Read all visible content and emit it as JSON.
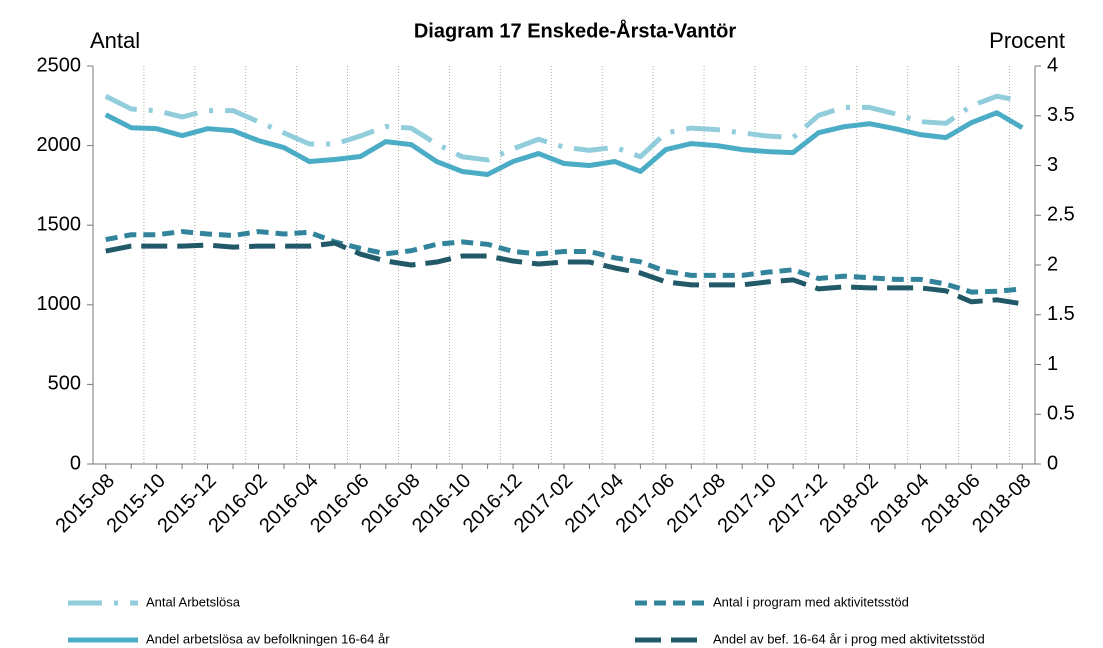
{
  "chart_data": {
    "type": "line",
    "title": "Diagram 17 Enskede-Årsta-Vantör",
    "y_label": "Antal",
    "y2_label": "Procent",
    "categories": [
      "2015-08",
      null,
      "2015-10",
      null,
      "2015-12",
      null,
      "2016-02",
      null,
      "2016-04",
      null,
      "2016-06",
      null,
      "2016-08",
      null,
      "2016-10",
      null,
      "2016-12",
      null,
      "2017-02",
      null,
      "2017-04",
      null,
      "2017-06",
      null,
      "2017-08",
      null,
      "2017-10",
      null,
      "2017-12",
      null,
      "2018-02",
      null,
      "2018-04",
      null,
      "2018-06",
      null,
      "2018-08"
    ],
    "ylim": [
      0,
      2500
    ],
    "yticks": [
      0,
      500,
      1000,
      1500,
      2000,
      2500
    ],
    "y2lim": [
      0,
      4
    ],
    "y2ticks": [
      0,
      0.5,
      1,
      1.5,
      2,
      2.5,
      3,
      3.5,
      4
    ],
    "series": [
      {
        "name": "Antal Arbetslösa",
        "color": "#92cddc",
        "values": [
          2310,
          2230,
          2220,
          2180,
          2220,
          2220,
          2150,
          2080,
          2010,
          2010,
          2060,
          2120,
          2110,
          2010,
          1930,
          1910,
          1980,
          2040,
          1990,
          1970,
          1990,
          1930,
          2080,
          2110,
          2100,
          2080,
          2060,
          2050,
          2190,
          2240,
          2240,
          2200,
          2150,
          2140,
          2250,
          2310,
          2280
        ]
      },
      {
        "name": "Antal i program med aktivitetsstöd",
        "color": "#31849b",
        "values": [
          1410,
          1440,
          1440,
          1460,
          1445,
          1435,
          1460,
          1445,
          1455,
          1395,
          1355,
          1320,
          1340,
          1380,
          1395,
          1380,
          1335,
          1320,
          1335,
          1335,
          1295,
          1270,
          1210,
          1185,
          1185,
          1185,
          1205,
          1220,
          1165,
          1180,
          1170,
          1160,
          1160,
          1130,
          1080,
          1085,
          1100
        ]
      },
      {
        "name": "Andel arbetslösa av befolkningen 16-64 år",
        "color": "#4bacc6",
        "axis": "y2",
        "values": [
          3.51,
          3.38,
          3.37,
          3.3,
          3.37,
          3.35,
          3.25,
          3.18,
          3.04,
          3.06,
          3.09,
          3.24,
          3.21,
          3.04,
          2.94,
          2.91,
          3.04,
          3.12,
          3.02,
          3.0,
          3.04,
          2.94,
          3.16,
          3.22,
          3.2,
          3.16,
          3.14,
          3.13,
          3.33,
          3.39,
          3.42,
          3.37,
          3.31,
          3.28,
          3.43,
          3.53,
          3.38
        ]
      },
      {
        "name": "Andel av bef. 16-64 år i prog med aktivitetsstöd",
        "color": "#215968",
        "axis": "y2",
        "values": [
          2.14,
          2.19,
          2.19,
          2.19,
          2.2,
          2.18,
          2.19,
          2.19,
          2.19,
          2.22,
          2.11,
          2.04,
          2.0,
          2.03,
          2.09,
          2.09,
          2.04,
          2.01,
          2.03,
          2.03,
          1.97,
          1.92,
          1.83,
          1.8,
          1.8,
          1.8,
          1.83,
          1.85,
          1.76,
          1.78,
          1.77,
          1.77,
          1.77,
          1.74,
          1.63,
          1.65,
          1.61
        ]
      }
    ]
  }
}
